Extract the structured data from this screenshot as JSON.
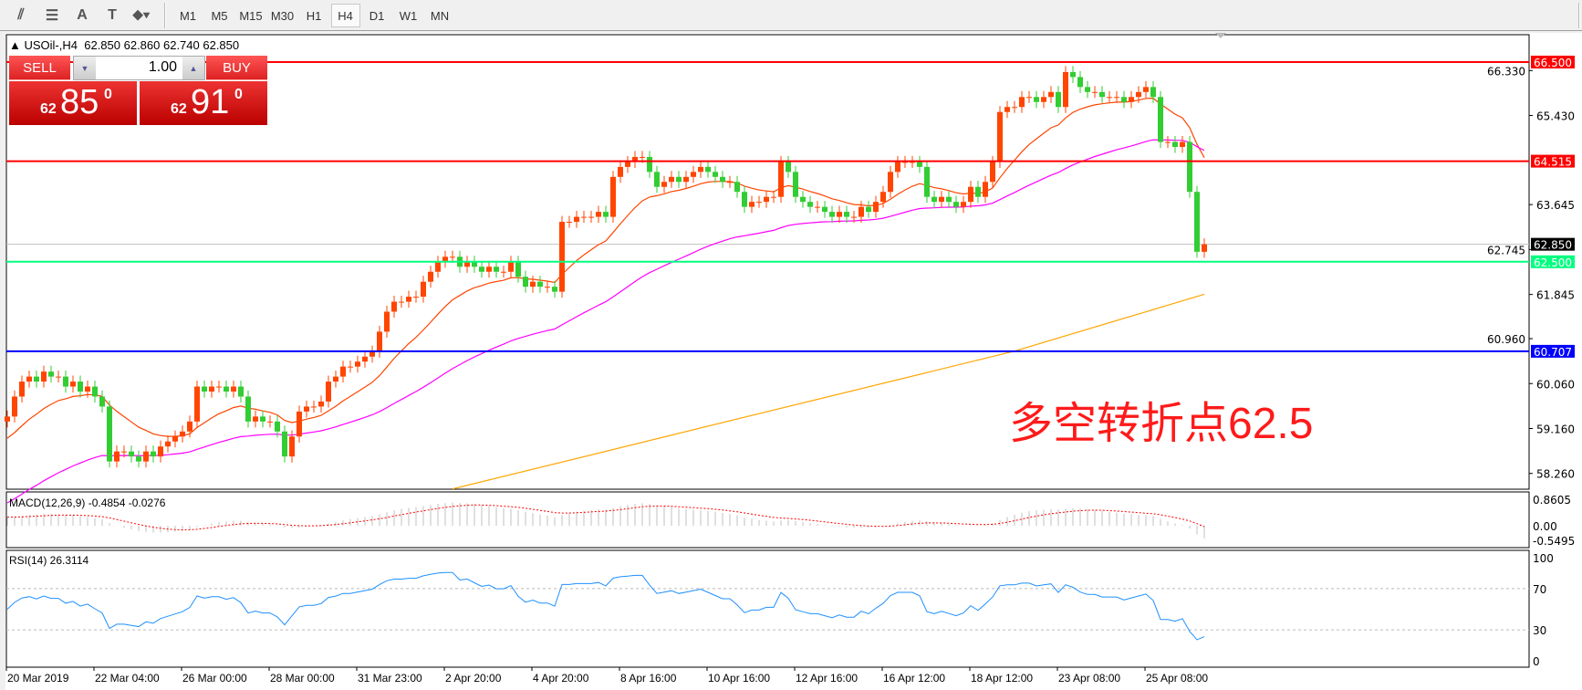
{
  "toolbar": {
    "tools": [
      {
        "icon": "equidistant-channel-icon",
        "glyph": "⫽"
      },
      {
        "icon": "fibonacci-icon",
        "glyph": "☰"
      },
      {
        "icon": "text-icon",
        "glyph": "A"
      },
      {
        "icon": "text-label-icon",
        "glyph": "T"
      },
      {
        "icon": "arrows-icon",
        "glyph": "⬥▾"
      }
    ],
    "timeframes": [
      "M1",
      "M5",
      "M15",
      "M30",
      "H1",
      "H4",
      "D1",
      "W1",
      "MN"
    ],
    "active_timeframe": "H4"
  },
  "chart": {
    "title": "USOil-,H4",
    "ohlc": "62.850 62.860 62.740 62.850",
    "trade_panel": {
      "sell_label": "SELL",
      "buy_label": "BUY",
      "lot": "1.00",
      "sell_prefix": "62",
      "sell_main": "85",
      "sell_sup": "0",
      "buy_prefix": "62",
      "buy_main": "91",
      "buy_sup": "0"
    },
    "annotation": "多空转折点62.5",
    "colors": {
      "bull": "#FF4500",
      "bear": "#32CD32",
      "ma_fast": "#FF4500",
      "ma_mid": "#FF00FF",
      "ma_slow": "#FFA500",
      "rsi": "#1E90FF",
      "macd_hist": "#C0C0C0",
      "macd_signal": "#FF0000"
    }
  },
  "chart_data": {
    "type": "candlestick",
    "symbol": "USOil-",
    "timeframe": "H4",
    "ylim": [
      57.94,
      67.05
    ],
    "close": [
      59.4,
      59.8,
      60.1,
      60.2,
      60.1,
      60.3,
      60.2,
      60.2,
      60.0,
      60.1,
      59.9,
      60.0,
      59.8,
      59.6,
      58.5,
      58.7,
      58.7,
      58.6,
      58.5,
      58.7,
      58.6,
      58.8,
      58.9,
      59.0,
      59.1,
      59.3,
      60.0,
      59.9,
      60.0,
      60.0,
      59.9,
      60.0,
      59.8,
      59.3,
      59.4,
      59.3,
      59.3,
      59.1,
      58.6,
      59.0,
      59.5,
      59.6,
      59.6,
      59.7,
      60.1,
      60.2,
      60.4,
      60.4,
      60.5,
      60.6,
      60.7,
      61.1,
      61.5,
      61.7,
      61.7,
      61.8,
      61.8,
      62.1,
      62.3,
      62.5,
      62.6,
      62.6,
      62.4,
      62.5,
      62.4,
      62.3,
      62.4,
      62.3,
      62.3,
      62.5,
      62.2,
      62.0,
      62.1,
      62.0,
      62.0,
      61.9,
      63.3,
      63.3,
      63.4,
      63.4,
      63.4,
      63.5,
      63.4,
      64.2,
      64.4,
      64.5,
      64.6,
      64.6,
      64.3,
      64.0,
      64.1,
      64.2,
      64.1,
      64.2,
      64.3,
      64.4,
      64.3,
      64.2,
      64.1,
      64.1,
      63.9,
      63.6,
      63.7,
      63.7,
      63.8,
      63.8,
      64.5,
      64.3,
      63.8,
      63.7,
      63.6,
      63.6,
      63.5,
      63.4,
      63.5,
      63.4,
      63.4,
      63.6,
      63.5,
      63.7,
      63.9,
      64.3,
      64.5,
      64.5,
      64.5,
      64.4,
      63.8,
      63.7,
      63.8,
      63.7,
      63.6,
      63.7,
      64.0,
      63.8,
      64.1,
      64.5,
      65.5,
      65.6,
      65.6,
      65.8,
      65.8,
      65.7,
      65.8,
      65.9,
      65.6,
      66.3,
      66.2,
      66.0,
      65.9,
      65.9,
      65.8,
      65.8,
      65.8,
      65.7,
      65.8,
      65.9,
      66.0,
      65.8,
      64.9,
      64.9,
      64.8,
      64.9,
      63.9,
      62.7,
      62.85
    ],
    "ma_slow_points": [
      [
        61,
        57.95
      ],
      [
        100,
        59.35
      ],
      [
        138,
        60.71
      ],
      [
        164,
        61.85
      ]
    ],
    "price_ticks": [
      "66.330",
      "65.430",
      "63.645",
      "62.745",
      "61.845",
      "60.960",
      "60.060",
      "59.160",
      "58.260"
    ],
    "levels": [
      {
        "price": "66.500",
        "color": "#FF0000"
      },
      {
        "price": "64.515",
        "color": "#FF0000"
      },
      {
        "price": "62.500",
        "color": "#00FF7F"
      },
      {
        "price": "60.707",
        "color": "#0000FF"
      }
    ],
    "bid": "62.850",
    "time_labels": [
      "20 Mar 2019",
      "22 Mar 04:00",
      "26 Mar 00:00",
      "28 Mar 00:00",
      "31 Mar 23:00",
      "2 Apr 20:00",
      "4 Apr 20:00",
      "8 Apr 16:00",
      "10 Apr 16:00",
      "12 Apr 16:00",
      "16 Apr 12:00",
      "18 Apr 12:00",
      "23 Apr 08:00",
      "25 Apr 08:00"
    ],
    "macd": {
      "label": "MACD(12,26,9) -0.4854 -0.0276",
      "ticks": [
        "0.8605",
        "0.00",
        "-0.5495"
      ],
      "range": [
        -0.5495,
        0.8605
      ]
    },
    "rsi": {
      "label": "RSI(14) 26.3114",
      "ticks": [
        "100",
        "70",
        "30",
        "0"
      ],
      "levels": [
        70,
        30
      ]
    }
  }
}
